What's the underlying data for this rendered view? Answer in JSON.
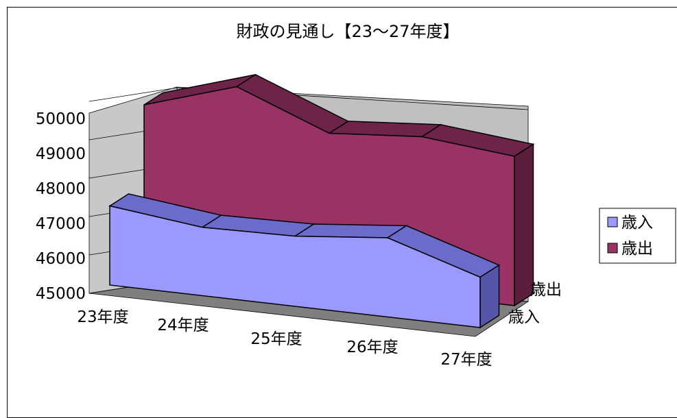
{
  "chart_data": {
    "type": "area",
    "title": "財政の見通し【23～27年度】",
    "categories": [
      "23年度",
      "24年度",
      "25年度",
      "26年度",
      "27年度"
    ],
    "series": [
      {
        "name": "歳入",
        "values": [
          47200,
          46900,
          46950,
          47200,
          46400
        ],
        "color": "#9999ff"
      },
      {
        "name": "歳出",
        "values": [
          49400,
          50200,
          49200,
          49400,
          49150
        ],
        "color": "#993366"
      }
    ],
    "depth_labels": [
      "歳出",
      "歳入"
    ],
    "ylim": [
      45000,
      50000
    ],
    "y_ticks": [
      "50000",
      "49000",
      "48000",
      "47000",
      "46000",
      "45000"
    ],
    "grid": true,
    "legend_position": "right",
    "colors": {
      "wall": "#c0c0c0",
      "floor": "#7f7f7f",
      "grid": "#000000",
      "outline": "#000000"
    }
  }
}
